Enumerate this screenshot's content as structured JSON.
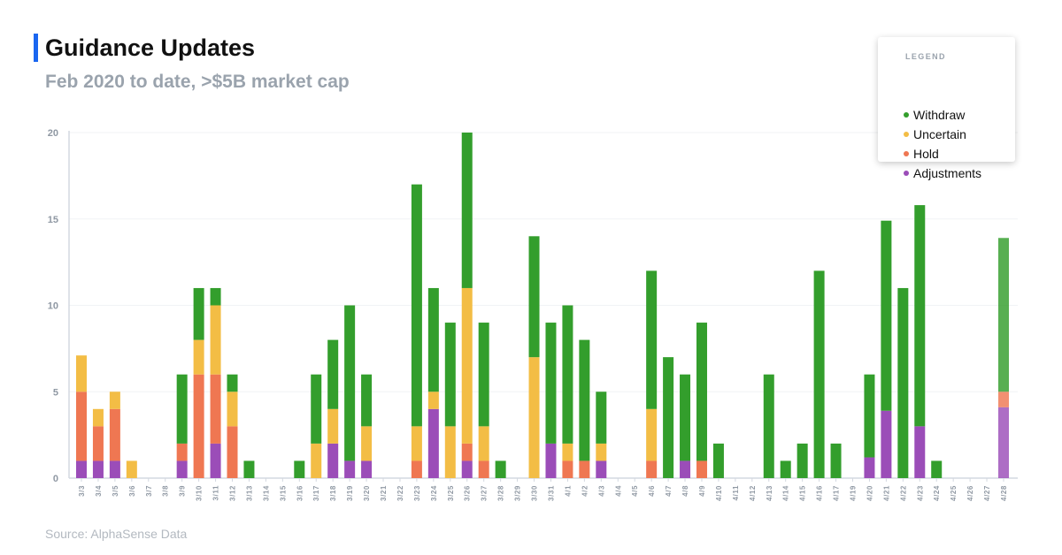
{
  "header": {
    "title": "Guidance Updates",
    "subtitle": "Feb 2020 to date, >$5B market cap",
    "accent_color": "#1a66f0"
  },
  "source": "Source: AlphaSense Data",
  "legend": {
    "title": "LEGEND",
    "items": [
      {
        "label": "Withdraw",
        "color": "#339e2c"
      },
      {
        "label": "Uncertain",
        "color": "#f3bd45"
      },
      {
        "label": "Hold",
        "color": "#ef7752"
      },
      {
        "label": "Adjustments",
        "color": "#9b4db8"
      }
    ]
  },
  "chart_data": {
    "type": "bar",
    "stacked": true,
    "ylim": [
      0,
      20
    ],
    "yticks": [
      0,
      5,
      10,
      15,
      20
    ],
    "grid": true,
    "legend_position": "top-right",
    "categories": [
      "3/3",
      "3/4",
      "3/5",
      "3/6",
      "3/7",
      "3/8",
      "3/9",
      "3/10",
      "3/11",
      "3/12",
      "3/13",
      "3/14",
      "3/15",
      "3/16",
      "3/17",
      "3/18",
      "3/19",
      "3/20",
      "3/21",
      "3/22",
      "3/23",
      "3/24",
      "3/25",
      "3/26",
      "3/27",
      "3/28",
      "3/29",
      "3/30",
      "3/31",
      "4/1",
      "4/2",
      "4/3",
      "4/4",
      "4/5",
      "4/6",
      "4/7",
      "4/8",
      "4/9",
      "4/10",
      "4/11",
      "4/12",
      "4/13",
      "4/14",
      "4/15",
      "4/16",
      "4/17",
      "4/19",
      "4/20",
      "4/21",
      "4/22",
      "4/23",
      "4/24",
      "4/25",
      "4/26",
      "4/27",
      "4/28"
    ],
    "series": [
      {
        "name": "Adjustments",
        "color": "#9b4db8",
        "values": [
          1,
          1,
          1,
          0,
          0,
          0,
          1,
          0,
          2,
          0,
          0,
          0,
          0,
          0,
          0,
          2,
          1,
          1,
          0,
          0,
          0,
          4,
          0,
          1,
          0,
          0,
          0,
          0,
          2,
          0,
          0,
          1,
          0,
          0,
          0,
          0,
          1,
          0,
          0,
          0,
          0,
          0,
          0,
          0,
          0,
          0,
          0,
          1.2,
          3.9,
          0,
          3,
          0,
          0,
          0,
          0,
          4.1
        ]
      },
      {
        "name": "Hold",
        "color": "#ef7752",
        "values": [
          4,
          2,
          3,
          0,
          0,
          0,
          1,
          6,
          4,
          3,
          0,
          0,
          0,
          0,
          0,
          0,
          0,
          0,
          0,
          0,
          1,
          0,
          0,
          1,
          1,
          0,
          0,
          0,
          0,
          1,
          1,
          0,
          0,
          0,
          1,
          0,
          0,
          1,
          0,
          0,
          0,
          0,
          0,
          0,
          0,
          0,
          0,
          0,
          0,
          0,
          0,
          0,
          0,
          0,
          0,
          0.9
        ]
      },
      {
        "name": "Uncertain",
        "color": "#f3bd45",
        "values": [
          2.1,
          1,
          1,
          1,
          0,
          0,
          0,
          2,
          4,
          2,
          0,
          0,
          0,
          0,
          2,
          2,
          0,
          2,
          0,
          0,
          2,
          1,
          3,
          9,
          2,
          0,
          0,
          7,
          0,
          1,
          0,
          1,
          0,
          0,
          3,
          0,
          0,
          0,
          0,
          0,
          0,
          0,
          0,
          0,
          0,
          0,
          0,
          0,
          0,
          0,
          0,
          0,
          0,
          0,
          0,
          0
        ]
      },
      {
        "name": "Withdraw",
        "color": "#339e2c",
        "values": [
          0,
          0,
          0,
          0,
          0,
          0,
          4,
          3,
          1,
          1,
          1,
          0,
          0,
          1,
          4,
          4,
          9,
          3,
          0,
          0,
          14,
          6,
          6,
          9,
          6,
          1,
          0,
          7,
          7,
          8,
          7,
          3,
          0,
          0,
          8,
          7,
          5,
          8,
          2,
          0,
          0,
          6,
          1,
          2,
          12,
          2,
          0,
          4.8,
          11,
          11,
          12.8,
          1,
          0,
          0,
          0,
          8.9
        ]
      }
    ],
    "last_bar_muted": true
  }
}
